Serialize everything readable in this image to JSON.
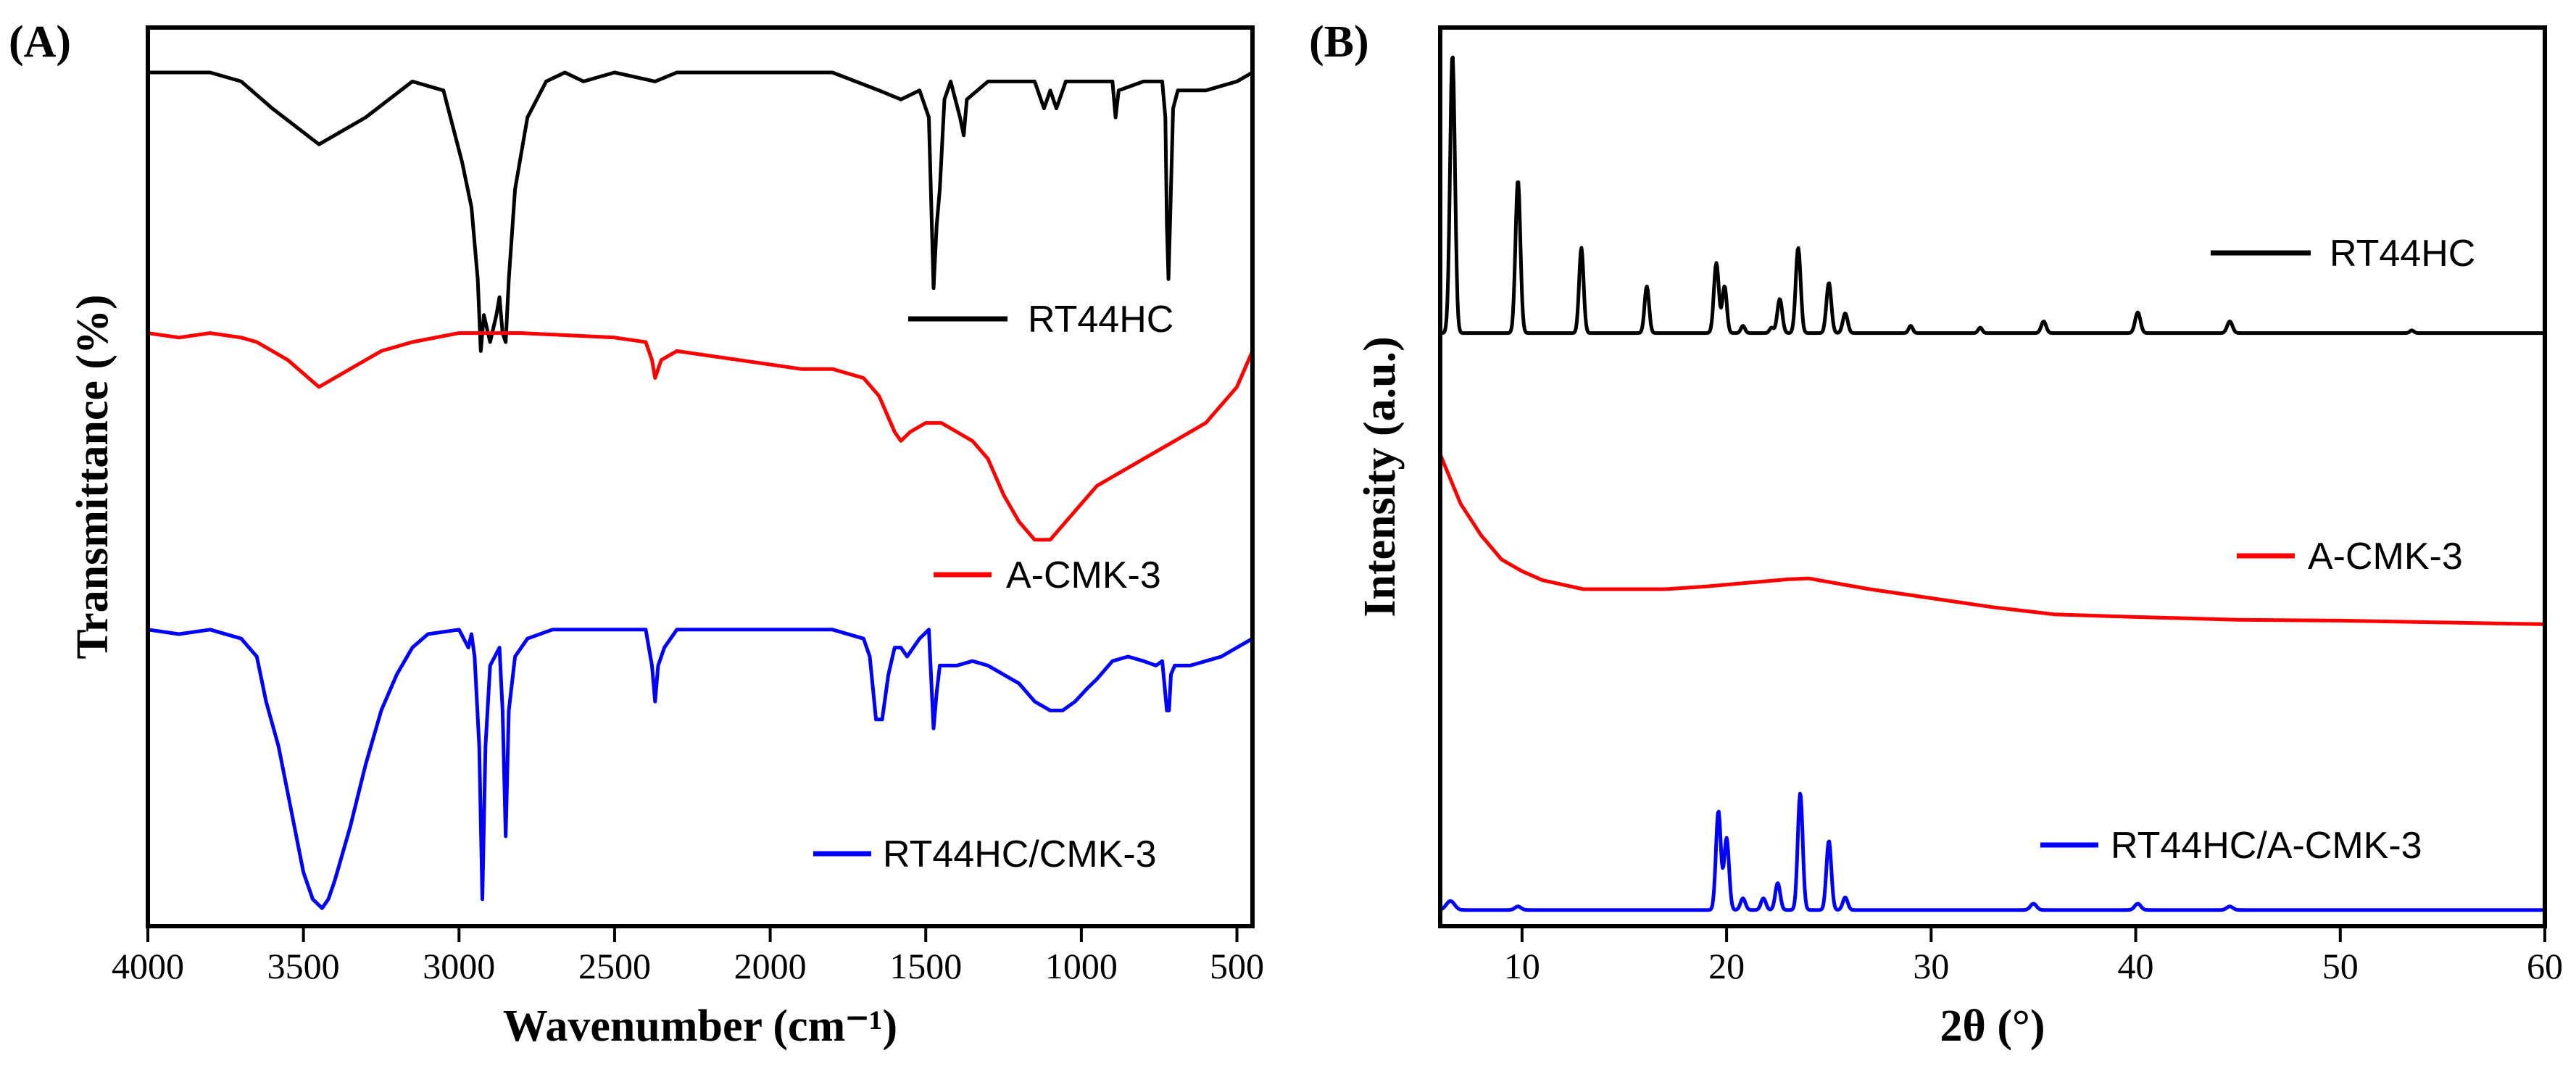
{
  "colors": {
    "black": "#000000",
    "red": "#ff0000",
    "blue": "#0000ff"
  },
  "chart_data": [
    {
      "type": "line",
      "panel_label": "(A)",
      "title": "",
      "xlabel": "Wavenumber (cm⁻¹)",
      "ylabel": "Transmittance (%)",
      "xlim": [
        4000,
        450
      ],
      "ylim": [
        0,
        100
      ],
      "x_reversed": true,
      "x_ticks": [
        4000,
        3500,
        3000,
        2500,
        2000,
        1500,
        1000,
        500
      ],
      "x_tick_labels": [
        "4000",
        "3500",
        "3000",
        "2500",
        "2000",
        "1500",
        "1000",
        "500"
      ],
      "y_ticks_shown": false,
      "legend_position": "inline-right",
      "series": [
        {
          "name": "RT44HC",
          "color": "#000000",
          "points": [
            [
              4000,
              95
            ],
            [
              3800,
              95
            ],
            [
              3700,
              94
            ],
            [
              3600,
              91
            ],
            [
              3450,
              87
            ],
            [
              3300,
              90
            ],
            [
              3150,
              94
            ],
            [
              3050,
              93
            ],
            [
              2990,
              85
            ],
            [
              2960,
              80
            ],
            [
              2940,
              72
            ],
            [
              2930,
              64
            ],
            [
              2920,
              68
            ],
            [
              2900,
              65
            ],
            [
              2880,
              68
            ],
            [
              2870,
              70
            ],
            [
              2860,
              66
            ],
            [
              2850,
              65
            ],
            [
              2840,
              72
            ],
            [
              2820,
              82
            ],
            [
              2780,
              90
            ],
            [
              2720,
              94
            ],
            [
              2660,
              95
            ],
            [
              2600,
              94
            ],
            [
              2500,
              95
            ],
            [
              2370,
              94
            ],
            [
              2300,
              95
            ],
            [
              1800,
              95
            ],
            [
              1650,
              93
            ],
            [
              1580,
              92
            ],
            [
              1520,
              93
            ],
            [
              1490,
              90
            ],
            [
              1475,
              71
            ],
            [
              1465,
              78
            ],
            [
              1455,
              82
            ],
            [
              1440,
              92
            ],
            [
              1420,
              94
            ],
            [
              1390,
              90
            ],
            [
              1378,
              88
            ],
            [
              1368,
              92
            ],
            [
              1300,
              94
            ],
            [
              1150,
              94
            ],
            [
              1120,
              91
            ],
            [
              1100,
              93
            ],
            [
              1080,
              91
            ],
            [
              1050,
              94
            ],
            [
              900,
              94
            ],
            [
              890,
              90
            ],
            [
              880,
              93
            ],
            [
              800,
              94
            ],
            [
              740,
              94
            ],
            [
              730,
              90
            ],
            [
              725,
              78
            ],
            [
              720,
              72
            ],
            [
              715,
              78
            ],
            [
              705,
              91
            ],
            [
              690,
              93
            ],
            [
              600,
              93
            ],
            [
              500,
              94
            ],
            [
              450,
              95
            ]
          ]
        },
        {
          "name": "A-CMK-3",
          "color": "#ff0000",
          "points": [
            [
              4000,
              66
            ],
            [
              3900,
              65.5
            ],
            [
              3800,
              66
            ],
            [
              3700,
              65.5
            ],
            [
              3650,
              65
            ],
            [
              3550,
              63
            ],
            [
              3450,
              60
            ],
            [
              3350,
              62
            ],
            [
              3250,
              64
            ],
            [
              3150,
              65
            ],
            [
              3000,
              66
            ],
            [
              2800,
              66
            ],
            [
              2500,
              65.5
            ],
            [
              2400,
              65
            ],
            [
              2380,
              63
            ],
            [
              2370,
              61
            ],
            [
              2350,
              63
            ],
            [
              2300,
              64
            ],
            [
              2200,
              63.5
            ],
            [
              2100,
              63
            ],
            [
              2000,
              62.5
            ],
            [
              1900,
              62
            ],
            [
              1800,
              62
            ],
            [
              1700,
              61
            ],
            [
              1650,
              59
            ],
            [
              1600,
              55
            ],
            [
              1580,
              54
            ],
            [
              1550,
              55
            ],
            [
              1500,
              56
            ],
            [
              1450,
              56
            ],
            [
              1400,
              55
            ],
            [
              1350,
              54
            ],
            [
              1300,
              52
            ],
            [
              1250,
              48
            ],
            [
              1200,
              45
            ],
            [
              1150,
              43
            ],
            [
              1100,
              43
            ],
            [
              1050,
              45
            ],
            [
              1000,
              47
            ],
            [
              950,
              49
            ],
            [
              900,
              50
            ],
            [
              850,
              51
            ],
            [
              800,
              52
            ],
            [
              700,
              54
            ],
            [
              600,
              56
            ],
            [
              500,
              60
            ],
            [
              450,
              64
            ]
          ]
        },
        {
          "name": "RT44HC/CMK-3",
          "color": "#0000ff",
          "points": [
            [
              4000,
              33
            ],
            [
              3900,
              32.5
            ],
            [
              3800,
              33
            ],
            [
              3700,
              32
            ],
            [
              3650,
              30
            ],
            [
              3620,
              25
            ],
            [
              3580,
              20
            ],
            [
              3540,
              13
            ],
            [
              3500,
              6
            ],
            [
              3470,
              3
            ],
            [
              3440,
              2
            ],
            [
              3420,
              3
            ],
            [
              3400,
              5
            ],
            [
              3350,
              11
            ],
            [
              3300,
              18
            ],
            [
              3250,
              24
            ],
            [
              3200,
              28
            ],
            [
              3150,
              31
            ],
            [
              3100,
              32.5
            ],
            [
              3000,
              33
            ],
            [
              2970,
              31
            ],
            [
              2960,
              32.5
            ],
            [
              2950,
              30
            ],
            [
              2935,
              20
            ],
            [
              2925,
              3
            ],
            [
              2915,
              20
            ],
            [
              2900,
              29
            ],
            [
              2885,
              30
            ],
            [
              2870,
              31
            ],
            [
              2860,
              24
            ],
            [
              2850,
              10
            ],
            [
              2840,
              24
            ],
            [
              2820,
              30
            ],
            [
              2780,
              32
            ],
            [
              2700,
              33
            ],
            [
              2500,
              33
            ],
            [
              2400,
              33
            ],
            [
              2380,
              29
            ],
            [
              2370,
              25
            ],
            [
              2360,
              29
            ],
            [
              2340,
              31
            ],
            [
              2320,
              32
            ],
            [
              2300,
              33
            ],
            [
              1800,
              33
            ],
            [
              1700,
              32
            ],
            [
              1680,
              30
            ],
            [
              1660,
              23
            ],
            [
              1640,
              23
            ],
            [
              1620,
              28
            ],
            [
              1600,
              31
            ],
            [
              1580,
              31
            ],
            [
              1560,
              30
            ],
            [
              1540,
              31
            ],
            [
              1520,
              32
            ],
            [
              1490,
              33
            ],
            [
              1475,
              22
            ],
            [
              1465,
              26
            ],
            [
              1455,
              29
            ],
            [
              1400,
              29
            ],
            [
              1350,
              29.5
            ],
            [
              1300,
              29
            ],
            [
              1250,
              28
            ],
            [
              1200,
              27
            ],
            [
              1150,
              25
            ],
            [
              1100,
              24
            ],
            [
              1060,
              24
            ],
            [
              1020,
              25
            ],
            [
              980,
              26.5
            ],
            [
              950,
              27.5
            ],
            [
              900,
              29.5
            ],
            [
              850,
              30
            ],
            [
              800,
              29.5
            ],
            [
              760,
              29
            ],
            [
              740,
              29.5
            ],
            [
              725,
              24
            ],
            [
              718,
              24
            ],
            [
              712,
              28
            ],
            [
              700,
              29
            ],
            [
              650,
              29
            ],
            [
              600,
              29.5
            ],
            [
              550,
              30
            ],
            [
              500,
              31
            ],
            [
              450,
              32
            ]
          ]
        }
      ]
    },
    {
      "type": "line",
      "panel_label": "(B)",
      "title": "",
      "xlabel": "2θ (°)",
      "ylabel": "Intensity (a.u.)",
      "xlim": [
        6,
        60
      ],
      "ylim": [
        0,
        100
      ],
      "x_ticks": [
        10,
        20,
        30,
        40,
        50,
        60
      ],
      "x_tick_labels": [
        "10",
        "20",
        "30",
        "40",
        "50",
        "60"
      ],
      "y_ticks_shown": false,
      "legend_position": "inline-right",
      "series": [
        {
          "name": "RT44HC",
          "color": "#000000",
          "baseline": 66,
          "peaks": [
            [
              6.6,
              31,
              0.12
            ],
            [
              9.8,
              17,
              0.12
            ],
            [
              12.9,
              9.5,
              0.11
            ],
            [
              16.1,
              5.2,
              0.11
            ],
            [
              19.5,
              7.8,
              0.12
            ],
            [
              19.9,
              5.2,
              0.11
            ],
            [
              20.8,
              0.8,
              0.1
            ],
            [
              22.2,
              0.6,
              0.1
            ],
            [
              22.6,
              3.8,
              0.12
            ],
            [
              23.5,
              9.5,
              0.12
            ],
            [
              25.0,
              5.6,
              0.12
            ],
            [
              25.8,
              2.2,
              0.12
            ],
            [
              29.0,
              0.8,
              0.1
            ],
            [
              32.4,
              0.6,
              0.1
            ],
            [
              35.5,
              1.3,
              0.12
            ],
            [
              40.1,
              2.3,
              0.13
            ],
            [
              44.6,
              1.3,
              0.13
            ],
            [
              53.5,
              0.3,
              0.1
            ]
          ]
        },
        {
          "name": "A-CMK-3",
          "color": "#ff0000",
          "points": [
            [
              6,
              52.5
            ],
            [
              7,
              47
            ],
            [
              8,
              43.5
            ],
            [
              9,
              40.8
            ],
            [
              10,
              39.5
            ],
            [
              11,
              38.5
            ],
            [
              12,
              38
            ],
            [
              13,
              37.5
            ],
            [
              15,
              37.5
            ],
            [
              17,
              37.5
            ],
            [
              19,
              37.8
            ],
            [
              21,
              38.2
            ],
            [
              23,
              38.6
            ],
            [
              24,
              38.7
            ],
            [
              25,
              38.3
            ],
            [
              27,
              37.5
            ],
            [
              30,
              36.5
            ],
            [
              33,
              35.5
            ],
            [
              36,
              34.7
            ],
            [
              40,
              34.4
            ],
            [
              45,
              34.1
            ],
            [
              50,
              34
            ],
            [
              55,
              33.8
            ],
            [
              60,
              33.6
            ]
          ]
        },
        {
          "name": "RT44HC/A-CMK-3",
          "color": "#0000ff",
          "baseline": 1.8,
          "peaks": [
            [
              6.5,
              1,
              0.2
            ],
            [
              9.8,
              0.4,
              0.15
            ],
            [
              19.6,
              11,
              0.12
            ],
            [
              20.0,
              8,
              0.12
            ],
            [
              20.8,
              1.3,
              0.12
            ],
            [
              21.8,
              1.3,
              0.12
            ],
            [
              22.5,
              3,
              0.12
            ],
            [
              23.6,
              13,
              0.12
            ],
            [
              25.0,
              7.7,
              0.12
            ],
            [
              25.8,
              1.4,
              0.12
            ],
            [
              35.0,
              0.7,
              0.15
            ],
            [
              40.1,
              0.7,
              0.15
            ],
            [
              44.6,
              0.4,
              0.15
            ]
          ]
        }
      ]
    }
  ]
}
